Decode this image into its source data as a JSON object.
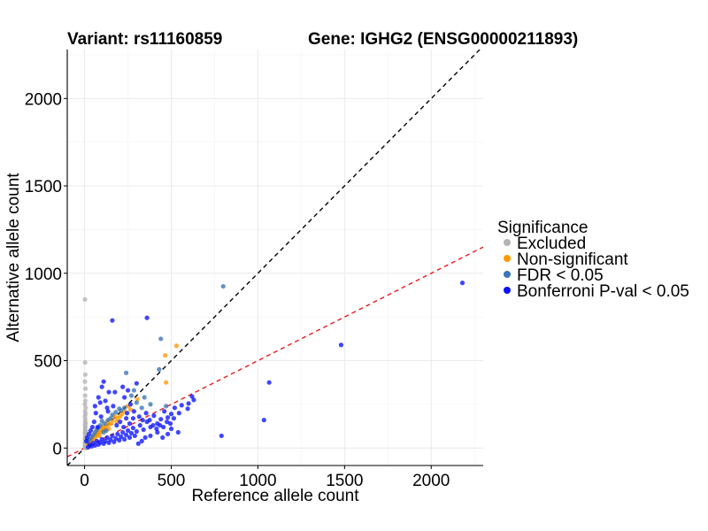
{
  "chart_data": {
    "type": "scatter",
    "title_left": "Variant: rs11160859",
    "title_right": "Gene: IGHG2 (ENSG00000211893)",
    "xlabel": "Reference allele count",
    "ylabel": "Alternative allele count",
    "xlim": [
      -100,
      2300
    ],
    "ylim": [
      -100,
      2280
    ],
    "xticks": [
      0,
      500,
      1000,
      1500,
      2000
    ],
    "yticks": [
      0,
      500,
      1000,
      1500,
      2000
    ],
    "grid": true,
    "legend": {
      "title": "Significance",
      "placement": "right",
      "entries": [
        {
          "label": "Excluded",
          "color": "#b3b3b3"
        },
        {
          "label": "Non-significant",
          "color": "#ff9900"
        },
        {
          "label": "FDR < 0.05",
          "color": "#3a75b4"
        },
        {
          "label": "Bonferroni P-val < 0.05",
          "color": "#0a12ff"
        }
      ]
    },
    "reference_lines": [
      {
        "slope": 1,
        "intercept": 0,
        "color": "#000000",
        "style": "dashed"
      },
      {
        "slope": 0.5,
        "intercept": 0,
        "color": "#e8191c",
        "style": "dashed"
      }
    ],
    "series": [
      {
        "name": "Excluded",
        "color": "#b3b3b3",
        "points": [
          [
            2,
            850
          ],
          [
            3,
            490
          ],
          [
            4,
            420
          ],
          [
            2,
            380
          ],
          [
            5,
            340
          ],
          [
            3,
            300
          ],
          [
            4,
            270
          ],
          [
            2,
            250
          ],
          [
            6,
            230
          ],
          [
            3,
            210
          ],
          [
            5,
            195
          ],
          [
            2,
            180
          ],
          [
            4,
            165
          ],
          [
            3,
            150
          ],
          [
            6,
            140
          ],
          [
            2,
            130
          ],
          [
            5,
            120
          ],
          [
            3,
            110
          ],
          [
            4,
            100
          ],
          [
            7,
            95
          ],
          [
            2,
            88
          ],
          [
            5,
            80
          ],
          [
            3,
            72
          ],
          [
            8,
            66
          ],
          [
            4,
            60
          ],
          [
            2,
            55
          ],
          [
            6,
            50
          ],
          [
            3,
            45
          ],
          [
            9,
            40
          ],
          [
            5,
            36
          ],
          [
            2,
            32
          ],
          [
            4,
            28
          ],
          [
            7,
            24
          ],
          [
            3,
            20
          ],
          [
            10,
            18
          ],
          [
            5,
            15
          ],
          [
            2,
            12
          ],
          [
            8,
            10
          ],
          [
            4,
            8
          ],
          [
            12,
            6
          ],
          [
            6,
            4
          ],
          [
            3,
            3
          ],
          [
            15,
            2
          ],
          [
            9,
            1
          ],
          [
            5,
            0
          ],
          [
            20,
            5
          ],
          [
            14,
            8
          ],
          [
            11,
            14
          ],
          [
            25,
            10
          ],
          [
            18,
            3
          ]
        ]
      },
      {
        "name": "Non-significant",
        "color": "#ff9900",
        "points": [
          [
            530,
            585
          ],
          [
            465,
            530
          ],
          [
            470,
            375
          ],
          [
            305,
            280
          ],
          [
            265,
            220
          ],
          [
            230,
            210
          ],
          [
            215,
            195
          ],
          [
            190,
            170
          ],
          [
            175,
            180
          ],
          [
            160,
            160
          ],
          [
            140,
            135
          ],
          [
            130,
            150
          ],
          [
            120,
            125
          ],
          [
            110,
            115
          ],
          [
            100,
            100
          ],
          [
            95,
            120
          ],
          [
            90,
            90
          ],
          [
            80,
            85
          ],
          [
            75,
            95
          ],
          [
            70,
            72
          ],
          [
            65,
            80
          ],
          [
            60,
            60
          ],
          [
            55,
            65
          ],
          [
            50,
            52
          ],
          [
            45,
            55
          ],
          [
            40,
            42
          ],
          [
            35,
            45
          ],
          [
            30,
            32
          ],
          [
            25,
            30
          ],
          [
            20,
            22
          ],
          [
            140,
            110
          ],
          [
            155,
            140
          ],
          [
            185,
            150
          ],
          [
            205,
            180
          ],
          [
            250,
            240
          ],
          [
            120,
            105
          ],
          [
            85,
            70
          ]
        ]
      },
      {
        "name": "FDR < 0.05",
        "color": "#3a75b4",
        "points": [
          [
            800,
            925
          ],
          [
            440,
            625
          ],
          [
            240,
            430
          ],
          [
            430,
            450
          ],
          [
            285,
            330
          ],
          [
            470,
            240
          ],
          [
            270,
            300
          ],
          [
            230,
            230
          ],
          [
            200,
            225
          ],
          [
            180,
            205
          ],
          [
            150,
            170
          ],
          [
            135,
            160
          ],
          [
            115,
            140
          ],
          [
            100,
            155
          ],
          [
            90,
            130
          ],
          [
            80,
            115
          ],
          [
            70,
            105
          ],
          [
            60,
            90
          ],
          [
            50,
            75
          ],
          [
            40,
            62
          ],
          [
            30,
            48
          ],
          [
            20,
            35
          ],
          [
            160,
            190
          ],
          [
            210,
            215
          ],
          [
            300,
            260
          ],
          [
            330,
            230
          ],
          [
            345,
            290
          ],
          [
            380,
            250
          ],
          [
            125,
            100
          ],
          [
            110,
            90
          ]
        ]
      },
      {
        "name": "Bonferroni P-val < 0.05",
        "color": "#0a12ff",
        "points": [
          [
            2180,
            945
          ],
          [
            1480,
            590
          ],
          [
            1065,
            375
          ],
          [
            1035,
            160
          ],
          [
            790,
            70
          ],
          [
            360,
            745
          ],
          [
            160,
            730
          ],
          [
            620,
            295
          ],
          [
            600,
            255
          ],
          [
            630,
            275
          ],
          [
            595,
            225
          ],
          [
            560,
            245
          ],
          [
            545,
            200
          ],
          [
            520,
            230
          ],
          [
            500,
            195
          ],
          [
            480,
            175
          ],
          [
            460,
            210
          ],
          [
            440,
            165
          ],
          [
            420,
            140
          ],
          [
            400,
            185
          ],
          [
            380,
            120
          ],
          [
            360,
            150
          ],
          [
            340,
            105
          ],
          [
            320,
            130
          ],
          [
            300,
            95
          ],
          [
            290,
            70
          ],
          [
            280,
            115
          ],
          [
            270,
            85
          ],
          [
            260,
            60
          ],
          [
            250,
            100
          ],
          [
            240,
            75
          ],
          [
            230,
            50
          ],
          [
            220,
            90
          ],
          [
            210,
            65
          ],
          [
            200,
            45
          ],
          [
            190,
            80
          ],
          [
            180,
            55
          ],
          [
            170,
            35
          ],
          [
            160,
            70
          ],
          [
            150,
            48
          ],
          [
            140,
            30
          ],
          [
            130,
            60
          ],
          [
            120,
            40
          ],
          [
            110,
            25
          ],
          [
            100,
            50
          ],
          [
            90,
            32
          ],
          [
            80,
            20
          ],
          [
            70,
            40
          ],
          [
            60,
            15
          ],
          [
            50,
            28
          ],
          [
            40,
            10
          ],
          [
            30,
            18
          ],
          [
            20,
            5
          ],
          [
            350,
            60
          ],
          [
            330,
            40
          ],
          [
            310,
            25
          ],
          [
            420,
            90
          ],
          [
            450,
            60
          ],
          [
            380,
            70
          ],
          [
            500,
            110
          ],
          [
            540,
            90
          ],
          [
            480,
            80
          ],
          [
            260,
            140
          ],
          [
            280,
            170
          ],
          [
            240,
            170
          ],
          [
            230,
            290
          ],
          [
            250,
            330
          ],
          [
            220,
            350
          ],
          [
            120,
            270
          ],
          [
            140,
            320
          ],
          [
            110,
            380
          ],
          [
            90,
            260
          ],
          [
            100,
            350
          ],
          [
            175,
            320
          ],
          [
            300,
            370
          ],
          [
            75,
            120
          ],
          [
            65,
            200
          ],
          [
            55,
            150
          ],
          [
            95,
            180
          ],
          [
            135,
            210
          ],
          [
            165,
            240
          ],
          [
            185,
            130
          ],
          [
            205,
            150
          ],
          [
            225,
            120
          ],
          [
            245,
            200
          ],
          [
            265,
            250
          ],
          [
            285,
            210
          ],
          [
            315,
            180
          ],
          [
            335,
            160
          ],
          [
            355,
            200
          ],
          [
            375,
            160
          ],
          [
            395,
            130
          ],
          [
            415,
            110
          ],
          [
            435,
            130
          ],
          [
            455,
            120
          ],
          [
            475,
            150
          ],
          [
            495,
            140
          ],
          [
            515,
            170
          ],
          [
            25,
            80
          ],
          [
            35,
            100
          ],
          [
            45,
            120
          ],
          [
            15,
            60
          ],
          [
            10,
            40
          ],
          [
            60,
            240
          ],
          [
            80,
            290
          ],
          [
            130,
            230
          ]
        ]
      }
    ]
  }
}
